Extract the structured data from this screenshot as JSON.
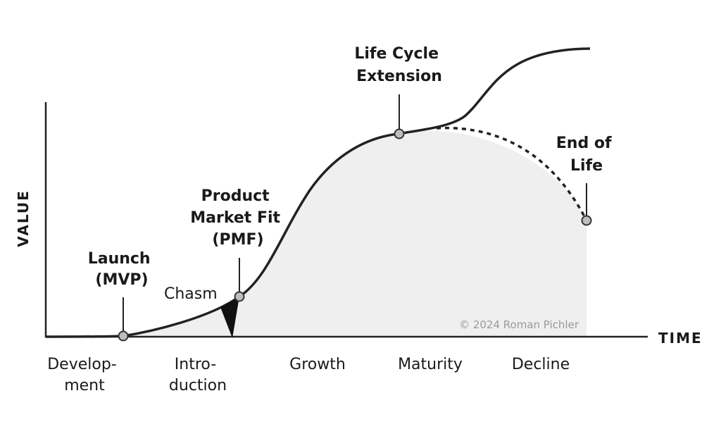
{
  "axes": {
    "y_label": "VALUE",
    "x_label": "TIME"
  },
  "stages": {
    "development": [
      "Develop-",
      "ment"
    ],
    "introduction": [
      "Intro-",
      "duction"
    ],
    "growth": "Growth",
    "maturity": "Maturity",
    "decline": "Decline"
  },
  "milestones": {
    "launch": [
      "Launch",
      "(MVP)"
    ],
    "pmf": [
      "Product",
      "Market Fit",
      "(PMF)"
    ],
    "extension": [
      "Life Cycle",
      "Extension"
    ],
    "end_of_life": [
      "End of",
      "Life"
    ]
  },
  "chasm_label": "Chasm",
  "copyright": "© 2024 Roman Pichler",
  "colors": {
    "curve": "#222222",
    "area_fill": "#efefef",
    "marker_fill": "#bdbdbd"
  }
}
